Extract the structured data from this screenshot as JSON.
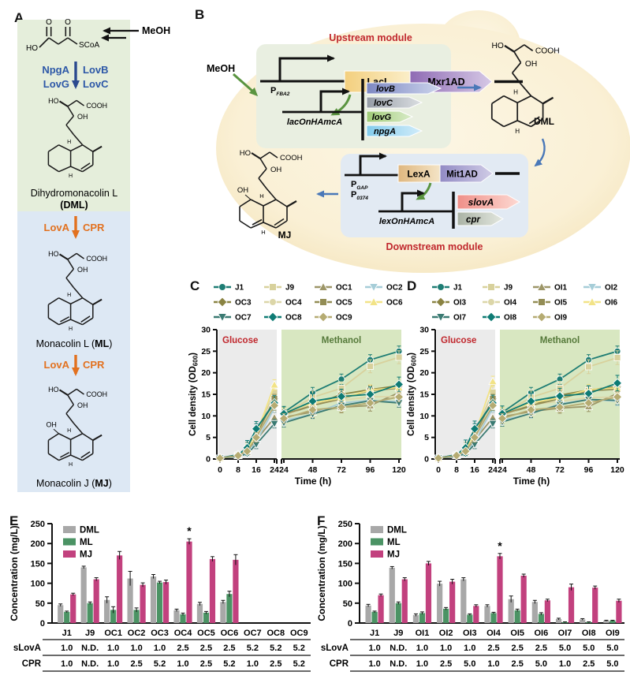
{
  "atoms": {
    "ho": "HO",
    "o": "O",
    "oh": "OH",
    "h": "H",
    "scoa": "SCoA",
    "cooh": "COOH"
  },
  "panel_labels": {
    "a": "A",
    "b": "B",
    "c": "C",
    "d": "D",
    "e": "E",
    "f": "F"
  },
  "panelA": {
    "meoh": "MeOH",
    "step1_left1": "NpgA",
    "step1_left2": "LovG",
    "step1_right1": "LovB",
    "step1_right2": "LovC",
    "step2_left": "LovA",
    "step2_right": "CPR",
    "dml_name": "Dihydromonacolin L",
    "paren_open": "(",
    "dml_abbr": "DML",
    "paren_close": ")",
    "ml_prefix": "Monacolin L (",
    "ml_abbr": "ML",
    "mj_prefix": "Monacolin J (",
    "mj_abbr": "MJ"
  },
  "panelB": {
    "meoh": "MeOH",
    "upstream_title": "Upstream module",
    "downstream_title": "Downstream module",
    "p1": "P",
    "p1_sub": "FBA2",
    "laci": "LacI",
    "mxr1ad": "Mxr1AD",
    "lac_promoter": "lacOnHAmcA",
    "gene_lovB": "lovB",
    "gene_lovC": "lovC",
    "gene_lovG": "lovG",
    "gene_npgA": "npgA",
    "dml": "DML",
    "mj": "MJ",
    "p2": "P",
    "p2_sub": "GAP",
    "p3": "P",
    "p3_sub": "0374",
    "lexa": "LexA",
    "mit1ad": "Mit1AD",
    "lex_promoter": "lexOnHAmcA",
    "gene_slovA": "slovA",
    "gene_cpr": "cpr"
  },
  "chart_data": [
    {
      "panel": "C",
      "type": "line",
      "phase_labels": {
        "left": "Glucose",
        "right": "Methanol"
      },
      "xlabel": "Time (h)",
      "ylabel": "Cell density (OD600)",
      "ylabel_parts": [
        {
          "t": "Cell density (OD"
        },
        {
          "t": "600",
          "sub": true
        },
        {
          "t": ")",
          "after_sub": true
        }
      ],
      "ylim": [
        0,
        30
      ],
      "yticks": [
        0,
        5,
        10,
        15,
        20,
        25,
        30
      ],
      "x_glucose": [
        0,
        8,
        12,
        16,
        24
      ],
      "x_methanol": [
        24,
        48,
        72,
        96,
        120
      ],
      "xticks_glucose": [
        0,
        8,
        16,
        24
      ],
      "xticks_methanol": [
        24,
        48,
        72,
        96,
        120
      ],
      "series": [
        {
          "name": "J1",
          "color": "#1e7d74",
          "marker": "circle",
          "glucose": [
            0.2,
            1.0,
            2.7,
            7.0,
            13.2
          ],
          "methanol": [
            10.8,
            15.4,
            18.5,
            23.0,
            25.0
          ],
          "err": 1.2
        },
        {
          "name": "J9",
          "color": "#d8d19c",
          "marker": "square",
          "glucose": [
            0.2,
            0.9,
            2.3,
            6.0,
            15.5
          ],
          "methanol": [
            10.4,
            14.3,
            16.4,
            21.5,
            23.6
          ],
          "err": 1.5
        },
        {
          "name": "OC1",
          "color": "#9d9668",
          "marker": "triangle-up",
          "glucose": [
            0.2,
            0.8,
            1.6,
            4.4,
            9.6
          ],
          "methanol": [
            9.7,
            10.9,
            12.0,
            12.4,
            15.4
          ],
          "err": 1.3
        },
        {
          "name": "OC2",
          "color": "#a6cdd8",
          "marker": "triangle-down",
          "glucose": [
            0.2,
            0.7,
            1.4,
            4.0,
            11.8
          ],
          "methanol": [
            8.9,
            10.4,
            13.0,
            13.6,
            13.3
          ],
          "err": 1.0
        },
        {
          "name": "OC3",
          "color": "#8a8342",
          "marker": "diamond",
          "glucose": [
            0.2,
            0.9,
            2.0,
            5.0,
            14.0
          ],
          "methanol": [
            10.2,
            12.4,
            15.0,
            16.1,
            17.0
          ],
          "err": 0.9
        },
        {
          "name": "OC4",
          "color": "#dcd6a8",
          "marker": "circle",
          "glucose": [
            0.2,
            0.8,
            2.0,
            5.0,
            13.6
          ],
          "methanol": [
            10.0,
            12.7,
            13.6,
            14.4,
            14.5
          ],
          "err": 1.5
        },
        {
          "name": "OC5",
          "color": "#938d55",
          "marker": "square",
          "glucose": [
            0.2,
            0.9,
            2.0,
            5.5,
            14.0
          ],
          "methanol": [
            10.4,
            12.4,
            14.0,
            15.9,
            16.4
          ],
          "err": 1.0
        },
        {
          "name": "OC6",
          "color": "#f2e387",
          "marker": "triangle-up",
          "glucose": [
            0.2,
            0.9,
            2.2,
            5.6,
            17.2
          ],
          "methanol": [
            10.7,
            13.0,
            14.1,
            16.0,
            16.6
          ],
          "err": 1.2
        },
        {
          "name": "OC7",
          "color": "#3a7a72",
          "marker": "triangle-down",
          "glucose": [
            0.2,
            0.6,
            1.2,
            3.4,
            8.2
          ],
          "methanol": [
            8.4,
            10.4,
            12.4,
            13.5,
            13.0
          ],
          "err": 1.0
        },
        {
          "name": "OC8",
          "color": "#0e7b74",
          "marker": "diamond",
          "glucose": [
            0.2,
            1.0,
            2.6,
            7.0,
            13.0
          ],
          "methanol": [
            10.5,
            13.4,
            14.5,
            15.0,
            17.3
          ],
          "err": 1.7
        },
        {
          "name": "OC9",
          "color": "#b5ab72",
          "marker": "diamond",
          "glucose": [
            0.2,
            0.8,
            1.8,
            5.0,
            12.4
          ],
          "methanol": [
            9.4,
            11.4,
            12.0,
            13.0,
            14.4
          ],
          "err": 1.1
        }
      ]
    },
    {
      "panel": "D",
      "type": "line",
      "phase_labels": {
        "left": "Glucose",
        "right": "Methanol"
      },
      "xlabel": "Time (h)",
      "ylabel": "Cell density (OD600)",
      "ylabel_parts": [
        {
          "t": "Cell density (OD"
        },
        {
          "t": "600",
          "sub": true
        },
        {
          "t": ")",
          "after_sub": true
        }
      ],
      "ylim": [
        0,
        30
      ],
      "yticks": [
        0,
        5,
        10,
        15,
        20,
        25,
        30
      ],
      "x_glucose": [
        0,
        8,
        12,
        16,
        24
      ],
      "x_methanol": [
        24,
        48,
        72,
        96,
        120
      ],
      "xticks_glucose": [
        0,
        8,
        16,
        24
      ],
      "xticks_methanol": [
        24,
        48,
        72,
        96,
        120
      ],
      "series": [
        {
          "name": "J1",
          "color": "#1e7d74",
          "marker": "circle",
          "glucose": [
            0.2,
            1.0,
            2.7,
            7.0,
            13.2
          ],
          "methanol": [
            10.8,
            15.4,
            18.5,
            23.0,
            25.0
          ],
          "err": 1.2
        },
        {
          "name": "J9",
          "color": "#d8d19c",
          "marker": "square",
          "glucose": [
            0.2,
            0.9,
            2.3,
            6.0,
            15.5
          ],
          "methanol": [
            10.4,
            14.3,
            16.4,
            21.4,
            23.5
          ],
          "err": 1.6
        },
        {
          "name": "OI1",
          "color": "#9d9668",
          "marker": "triangle-up",
          "glucose": [
            0.2,
            0.8,
            1.6,
            4.4,
            9.6
          ],
          "methanol": [
            9.8,
            11.0,
            11.8,
            12.2,
            15.2
          ],
          "err": 1.2
        },
        {
          "name": "OI2",
          "color": "#a6cdd8",
          "marker": "triangle-down",
          "glucose": [
            0.2,
            0.7,
            1.4,
            4.0,
            11.8
          ],
          "methanol": [
            9.0,
            10.5,
            12.8,
            13.8,
            13.4
          ],
          "err": 1.0
        },
        {
          "name": "OI3",
          "color": "#8a8342",
          "marker": "diamond",
          "glucose": [
            0.2,
            0.9,
            2.0,
            5.0,
            14.0
          ],
          "methanol": [
            10.2,
            12.3,
            14.8,
            16.0,
            16.8
          ],
          "err": 0.9
        },
        {
          "name": "OI4",
          "color": "#dcd6a8",
          "marker": "circle",
          "glucose": [
            0.2,
            0.8,
            2.0,
            5.0,
            13.6
          ],
          "methanol": [
            10.0,
            12.6,
            13.4,
            14.2,
            14.4
          ],
          "err": 1.4
        },
        {
          "name": "OI5",
          "color": "#938d55",
          "marker": "square",
          "glucose": [
            0.2,
            0.9,
            2.0,
            5.5,
            14.0
          ],
          "methanol": [
            10.4,
            12.4,
            14.0,
            15.8,
            16.2
          ],
          "err": 1.0
        },
        {
          "name": "OI6",
          "color": "#f2e387",
          "marker": "triangle-up",
          "glucose": [
            0.2,
            0.9,
            2.2,
            5.6,
            18.0
          ],
          "methanol": [
            10.7,
            13.0,
            14.2,
            16.1,
            16.5
          ],
          "err": 1.2
        },
        {
          "name": "OI7",
          "color": "#3a7a72",
          "marker": "triangle-down",
          "glucose": [
            0.2,
            0.6,
            1.2,
            3.4,
            8.2
          ],
          "methanol": [
            8.6,
            10.6,
            12.6,
            13.8,
            13.6
          ],
          "err": 1.0
        },
        {
          "name": "OI8",
          "color": "#0e7b74",
          "marker": "diamond",
          "glucose": [
            0.2,
            1.0,
            2.6,
            7.0,
            13.0
          ],
          "methanol": [
            10.5,
            13.4,
            14.6,
            15.2,
            17.6
          ],
          "err": 1.8
        },
        {
          "name": "OI9",
          "color": "#b5ab72",
          "marker": "diamond",
          "glucose": [
            0.2,
            0.8,
            1.8,
            5.0,
            12.4
          ],
          "methanol": [
            9.4,
            11.4,
            12.0,
            13.0,
            14.4
          ],
          "err": 1.1
        }
      ]
    },
    {
      "panel": "E",
      "type": "bar",
      "ylabel": "Concentration (mg/L)",
      "ylim": [
        0,
        250
      ],
      "yticks": [
        0,
        50,
        100,
        150,
        200,
        250
      ],
      "legend": [
        "DML",
        "ML",
        "MJ"
      ],
      "colors": {
        "DML": "#a8a8a8",
        "ML": "#4b9364",
        "MJ": "#c2417e"
      },
      "categories": [
        "J1",
        "J9",
        "OC1",
        "OC2",
        "OC3",
        "OC4",
        "OC5",
        "OC6",
        "OC7",
        "OC8",
        "OC9"
      ],
      "series": [
        {
          "name": "DML",
          "values": [
            45,
            140,
            58,
            112,
            117,
            32,
            48,
            53,
            0,
            0,
            0
          ],
          "err": [
            3,
            3,
            8,
            18,
            5,
            3,
            4,
            4,
            0,
            0,
            0
          ]
        },
        {
          "name": "ML",
          "values": [
            28,
            50,
            33,
            33,
            102,
            22,
            26,
            73,
            0,
            0,
            0
          ],
          "err": [
            2,
            3,
            8,
            5,
            3,
            3,
            3,
            7,
            0,
            0,
            0
          ]
        },
        {
          "name": "MJ",
          "values": [
            72,
            110,
            170,
            96,
            103,
            205,
            161,
            159,
            0,
            0,
            0
          ],
          "err": [
            3,
            4,
            10,
            5,
            5,
            7,
            6,
            13,
            0,
            0,
            0
          ]
        }
      ],
      "star_category": "OC4",
      "star": "*",
      "table": {
        "rows": [
          {
            "label": "sLovA",
            "values": [
              "1.0",
              "N.D.",
              "1.0",
              "1.0",
              "1.0",
              "2.5",
              "2.5",
              "2.5",
              "5.2",
              "5.2",
              "5.2"
            ]
          },
          {
            "label": "CPR",
            "values": [
              "1.0",
              "N.D.",
              "1.0",
              "2.5",
              "5.2",
              "1.0",
              "2.5",
              "5.2",
              "1.0",
              "2.5",
              "5.2"
            ]
          }
        ]
      }
    },
    {
      "panel": "F",
      "type": "bar",
      "ylabel": "Concentration (mg/L)",
      "ylim": [
        0,
        250
      ],
      "yticks": [
        0,
        50,
        100,
        150,
        200,
        250
      ],
      "legend": [
        "DML",
        "ML",
        "MJ"
      ],
      "colors": {
        "DML": "#a8a8a8",
        "ML": "#4b9364",
        "MJ": "#c2417e"
      },
      "categories": [
        "J1",
        "J9",
        "OI1",
        "OI2",
        "OI3",
        "OI4",
        "OI5",
        "OI6",
        "OI7",
        "OI8",
        "OI9"
      ],
      "series": [
        {
          "name": "DML",
          "values": [
            44,
            139,
            20,
            99,
            110,
            43,
            60,
            53,
            10,
            9,
            6
          ],
          "err": [
            3,
            3,
            3,
            6,
            4,
            3,
            8,
            4,
            2,
            2,
            1
          ]
        },
        {
          "name": "ML",
          "values": [
            28,
            50,
            25,
            36,
            21,
            25,
            32,
            23,
            2,
            2,
            6
          ],
          "err": [
            2,
            3,
            3,
            3,
            2,
            2,
            3,
            3,
            1,
            1,
            1
          ]
        },
        {
          "name": "MJ",
          "values": [
            70,
            110,
            150,
            104,
            43,
            168,
            119,
            57,
            90,
            89,
            56
          ],
          "err": [
            3,
            4,
            5,
            6,
            3,
            7,
            4,
            3,
            8,
            4,
            4
          ]
        }
      ],
      "star_category": "OI4",
      "star": "*",
      "table": {
        "rows": [
          {
            "label": "sLovA",
            "values": [
              "1.0",
              "N.D.",
              "1.0",
              "1.0",
              "1.0",
              "2.5",
              "2.5",
              "2.5",
              "5.0",
              "5.0",
              "5.0"
            ]
          },
          {
            "label": "CPR",
            "values": [
              "1.0",
              "N.D.",
              "1.0",
              "2.5",
              "5.0",
              "1.0",
              "2.5",
              "5.0",
              "1.0",
              "2.5",
              "5.0"
            ]
          }
        ]
      }
    }
  ]
}
